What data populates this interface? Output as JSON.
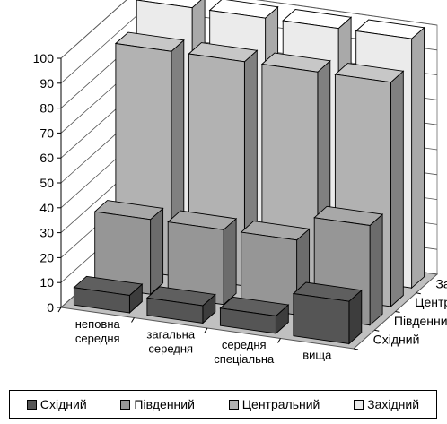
{
  "chart_data": {
    "type": "bar",
    "subtype": "3d-column",
    "categories": [
      "неповна\nсередня",
      "загальна\nсередня",
      "середня\nспеціальна",
      "вища"
    ],
    "series": [
      {
        "name": "Східний",
        "color": "#555555",
        "values": [
          7,
          7,
          7,
          17
        ]
      },
      {
        "name": "Південний",
        "color": "#969696",
        "values": [
          30,
          30,
          30,
          40
        ]
      },
      {
        "name": "Центральний",
        "color": "#b2b2b2",
        "values": [
          90,
          90,
          90,
          90
        ]
      },
      {
        "name": "Західний",
        "color": "#ebebeb",
        "values": [
          100,
          100,
          100,
          100
        ]
      }
    ],
    "yticks": [
      0,
      10,
      20,
      30,
      40,
      50,
      60,
      70,
      80,
      90,
      100
    ],
    "ylim": [
      0,
      100
    ],
    "grid": true,
    "legend": "bottom",
    "wall_color": "#c0c0c0"
  }
}
